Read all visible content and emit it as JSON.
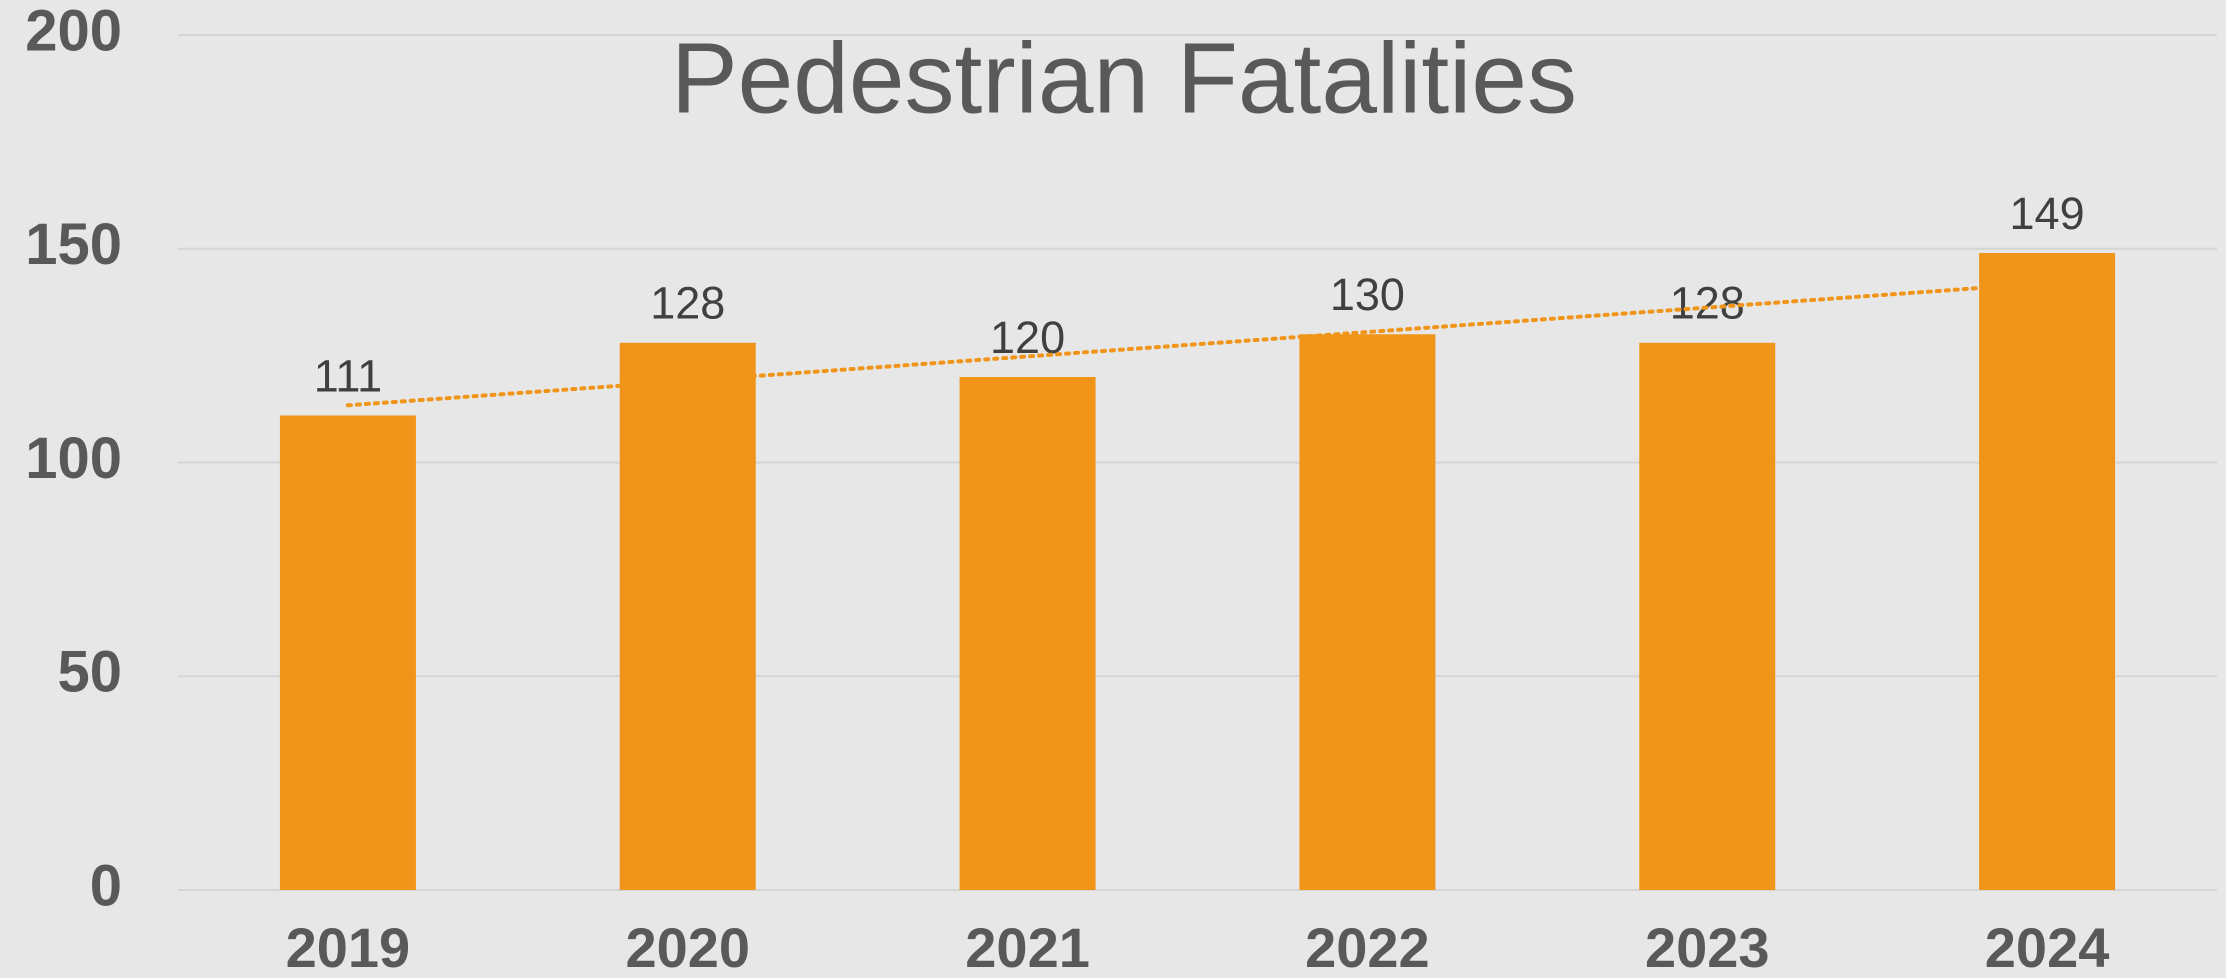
{
  "chart_data": {
    "type": "bar",
    "title": "Pedestrian Fatalities",
    "categories": [
      "2019",
      "2020",
      "2021",
      "2022",
      "2023",
      "2024"
    ],
    "values": [
      111,
      128,
      120,
      130,
      128,
      149
    ],
    "color": "#f0951a",
    "ylim": [
      0,
      200
    ],
    "yticks": [
      0,
      50,
      100,
      150,
      200
    ],
    "grid": true,
    "trendline": true
  }
}
